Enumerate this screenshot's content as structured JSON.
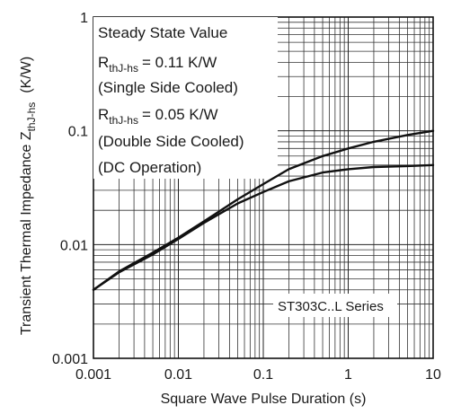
{
  "chart_data": {
    "type": "line",
    "title": "",
    "xlabel": "Square Wave Pulse Duration (s)",
    "ylabel": {
      "main": "Transient Thermal Impedance Z",
      "sub": "thJ-hs",
      "unit": "(K/W)"
    },
    "x_scale": "log",
    "y_scale": "log",
    "xlim": [
      0.001,
      10
    ],
    "ylim": [
      0.001,
      1
    ],
    "x_ticks": [
      {
        "value": 0.001,
        "label": "0.001"
      },
      {
        "value": 0.01,
        "label": "0.01"
      },
      {
        "value": 0.1,
        "label": "0.1"
      },
      {
        "value": 1,
        "label": "1"
      },
      {
        "value": 10,
        "label": "10"
      }
    ],
    "y_ticks": [
      {
        "value": 0.001,
        "label": "0.001"
      },
      {
        "value": 0.01,
        "label": "0.01"
      },
      {
        "value": 0.1,
        "label": "0.1"
      },
      {
        "value": 1,
        "label": "1"
      }
    ],
    "grid": true,
    "annotations": {
      "line1": "Steady State Value",
      "r1_main": "R",
      "r1_sub": "thJ-hs",
      "r1_value": "= 0.11 K/W",
      "line3": "(Single Side Cooled)",
      "r2_main": "R",
      "r2_sub": "thJ-hs",
      "r2_value": "= 0.05 K/W",
      "line5": "(Double Side Cooled)",
      "line6": "(DC Operation)",
      "series_label": "ST303C..L Series"
    },
    "series": [
      {
        "x": [
          0.001,
          0.002,
          0.005,
          0.01,
          0.02,
          0.05,
          0.1,
          0.2,
          0.5,
          1,
          2,
          5,
          10
        ],
        "y": [
          0.004,
          0.0058,
          0.0085,
          0.0115,
          0.016,
          0.025,
          0.034,
          0.046,
          0.06,
          0.07,
          0.08,
          0.092,
          0.1
        ]
      },
      {
        "x": [
          0.001,
          0.002,
          0.005,
          0.01,
          0.02,
          0.05,
          0.1,
          0.2,
          0.5,
          1,
          2,
          5,
          10
        ],
        "y": [
          0.004,
          0.0057,
          0.0082,
          0.0112,
          0.0155,
          0.023,
          0.029,
          0.036,
          0.043,
          0.046,
          0.048,
          0.049,
          0.05
        ]
      }
    ]
  }
}
